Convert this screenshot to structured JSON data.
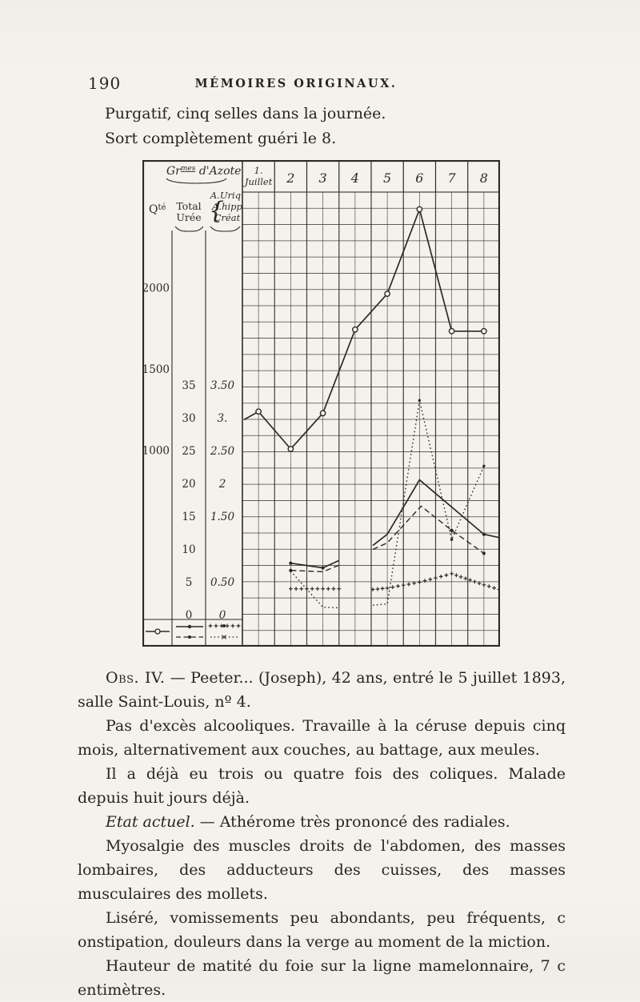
{
  "page": {
    "number": "190",
    "header": "MÉMOIRES ORIGINAUX."
  },
  "intro": {
    "line1": "Purgatif, cinq selles dans la journée.",
    "line2": "Sort complètement guéri le 8."
  },
  "chart_data": {
    "type": "line",
    "title": {
      "prefix": "Gr",
      "sup": "mes",
      "suffix": " d'Azote"
    },
    "columns": [
      {
        "line1": "1.",
        "line2": "Juillet"
      },
      "2",
      "3",
      "4",
      "5",
      "6",
      "7",
      "8"
    ],
    "row_labels": {
      "qte": "Qté",
      "total": [
        "Total",
        "Urée"
      ],
      "acids": [
        "A.Uriq",
        "A.hipp",
        "Créat"
      ]
    },
    "axes": {
      "qte_ticks": [
        {
          "label": "2000",
          "v": 2000
        },
        {
          "label": "1500",
          "v": 1500
        },
        {
          "label": "1000",
          "v": 1000
        }
      ],
      "g_ticks": [
        {
          "label": "35",
          "v": 35
        },
        {
          "label": "30",
          "v": 30
        },
        {
          "label": "25",
          "v": 25
        },
        {
          "label": "20",
          "v": 20
        },
        {
          "label": "15",
          "v": 15
        },
        {
          "label": "10",
          "v": 10
        },
        {
          "label": "5",
          "v": 5
        },
        {
          "label": "0",
          "v": 0
        }
      ],
      "acid_ticks": [
        {
          "label": "3.50",
          "v": 3.5
        },
        {
          "label": "3.",
          "v": 3
        },
        {
          "label": "2.50",
          "v": 2.5
        },
        {
          "label": "2",
          "v": 2
        },
        {
          "label": "1.50",
          "v": 1.5
        },
        {
          "label": "0.50",
          "v": 0.5
        },
        {
          "label": "0",
          "v": 0
        }
      ],
      "qte_range": [
        0,
        2800
      ],
      "g_range": [
        0,
        35
      ],
      "acid_range": [
        0,
        3.5
      ],
      "x_unit": "jour de juillet 1893",
      "grid": true
    },
    "series": [
      {
        "key": "qte",
        "name": "Qté (urines, cc)",
        "scale": "qte",
        "style": "solid",
        "marker": "circle",
        "segments": [
          [
            {
              "d": 0.55,
              "v": 1190
            },
            {
              "d": 1,
              "v": 1240
            },
            {
              "d": 2,
              "v": 1010
            },
            {
              "d": 3,
              "v": 1230
            },
            {
              "d": 4,
              "v": 1745
            },
            {
              "d": 5,
              "v": 1965
            },
            {
              "d": 6,
              "v": 2485
            },
            {
              "d": 7,
              "v": 1735
            },
            {
              "d": 8,
              "v": 1735
            }
          ]
        ],
        "marker_days": [
          1,
          2,
          3,
          4,
          5,
          6,
          7,
          8
        ]
      },
      {
        "key": "total",
        "name": "Azote total (g)",
        "scale": "g",
        "style": "solid",
        "marker": "dot",
        "segments": [
          [
            {
              "d": 2,
              "v": 7.9
            },
            {
              "d": 3,
              "v": 7.2
            },
            {
              "d": 3.5,
              "v": 8.3
            }
          ],
          [
            {
              "d": 4.55,
              "v": 10.6
            },
            {
              "d": 5,
              "v": 12.3
            },
            {
              "d": 6,
              "v": 20.6
            },
            {
              "d": 8,
              "v": 12.3
            },
            {
              "d": 8.55,
              "v": 11.8
            }
          ]
        ],
        "marker_days": [
          2,
          3,
          8
        ]
      },
      {
        "key": "uree",
        "name": "Urée (g)",
        "scale": "g",
        "style": "dashed",
        "marker": "dot",
        "segments": [
          [
            {
              "d": 2,
              "v": 6.8
            },
            {
              "d": 3,
              "v": 6.6
            },
            {
              "d": 3.5,
              "v": 7.6
            }
          ],
          [
            {
              "d": 4.55,
              "v": 10.0
            },
            {
              "d": 5,
              "v": 11.0
            },
            {
              "d": 6.05,
              "v": 16.6
            },
            {
              "d": 7,
              "v": 12.9
            },
            {
              "d": 8,
              "v": 9.4
            }
          ]
        ],
        "marker_days": [
          2,
          7,
          8
        ]
      },
      {
        "key": "auriq",
        "name": "Acide urique (g)",
        "scale": "acid",
        "style": "plus",
        "marker": "none",
        "segments": [
          [
            {
              "d": 2,
              "v": 0.4
            },
            {
              "d": 3.5,
              "v": 0.4
            }
          ],
          [
            {
              "d": 4.55,
              "v": 0.39
            },
            {
              "d": 5,
              "v": 0.41
            },
            {
              "d": 6,
              "v": 0.5
            },
            {
              "d": 7,
              "v": 0.63
            },
            {
              "d": 8,
              "v": 0.46
            },
            {
              "d": 8.55,
              "v": 0.39
            }
          ]
        ],
        "marker_days": []
      },
      {
        "key": "creat",
        "name": "Créatinine / A. hippurique (g)",
        "scale": "acid",
        "style": "dotted",
        "marker": "smalldot",
        "segments": [
          [
            {
              "d": 2,
              "v": 0.67
            },
            {
              "d": 3,
              "v": 0.12
            },
            {
              "d": 3.5,
              "v": 0.11
            }
          ],
          [
            {
              "d": 4.55,
              "v": 0.15
            },
            {
              "d": 5,
              "v": 0.17
            },
            {
              "d": 6,
              "v": 3.27
            },
            {
              "d": 7,
              "v": 1.15
            },
            {
              "d": 8,
              "v": 2.27
            }
          ]
        ],
        "marker_days": [
          2,
          6,
          7,
          8
        ]
      }
    ],
    "legend_position": "bottom-left-cells"
  },
  "paragraphs": [
    {
      "runs": [
        {
          "t": "Obs. IV.",
          "sc": true
        },
        {
          "t": " — Peeter... (Joseph), 42 ans, entré le 5 juillet 1893, salle Saint-Louis, nº 4."
        }
      ]
    },
    {
      "runs": [
        {
          "t": "Pas d'excès alcooliques. Travaille à la céruse depuis cinq mois, alternativement aux couches, au battage, aux meules."
        }
      ]
    },
    {
      "runs": [
        {
          "t": "Il a déjà eu trois ou quatre fois des coliques. Malade depuis huit jours déjà."
        }
      ]
    },
    {
      "runs": [
        {
          "t": "Etat actuel.",
          "i": true
        },
        {
          "t": " — Athérome très prononcé des radiales."
        }
      ]
    },
    {
      "runs": [
        {
          "t": "Myosalgie des muscles droits de l'abdomen, des masses lombaires, des adducteurs des cuisses, des masses musculaires des mollets."
        }
      ]
    },
    {
      "runs": [
        {
          "t": "Liséré, vomissements peu abondants, peu fréquents, c onstipation, douleurs dans la verge au moment de la miction."
        }
      ]
    },
    {
      "runs": [
        {
          "t": "Hauteur de matité du foie sur la ligne mamelonnaire, 7 c entimètres."
        }
      ]
    }
  ],
  "ink_color": "#2c2a24",
  "paper_color": "#f3f1ec"
}
